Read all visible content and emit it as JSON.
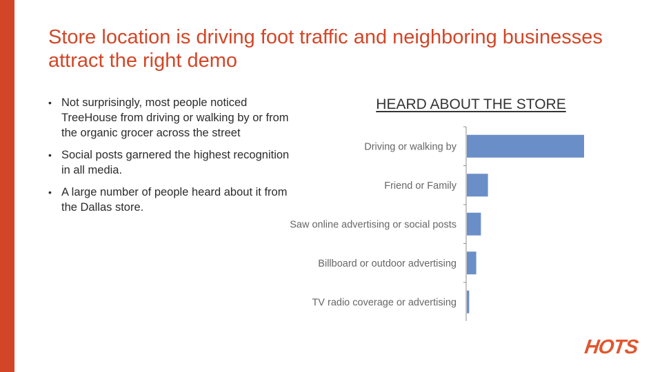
{
  "slide": {
    "title": "Store location is driving foot traffic and neighboring businesses attract the right demo",
    "bullets": [
      "Not surprisingly, most people noticed TreeHouse from driving or walking by or from the organic grocer across the street",
      "Social posts garnered the highest recognition in all media.",
      "A large number of people heard about it from the Dallas store."
    ],
    "logo_text": "HOTS",
    "accent_color": "#d24627"
  },
  "chart_data": {
    "type": "bar",
    "orientation": "horizontal",
    "title": "HEARD ABOUT THE STORE",
    "categories": [
      "Driving or walking by",
      "Friend or Family",
      "Saw online advertising or social posts",
      "Billboard or outdoor advertising",
      "TV radio coverage or advertising"
    ],
    "values": [
      100,
      18,
      12,
      8,
      2
    ],
    "xlim": [
      0,
      100
    ],
    "grid": false,
    "legend": "none",
    "bar_color": "#6a8ec8"
  }
}
